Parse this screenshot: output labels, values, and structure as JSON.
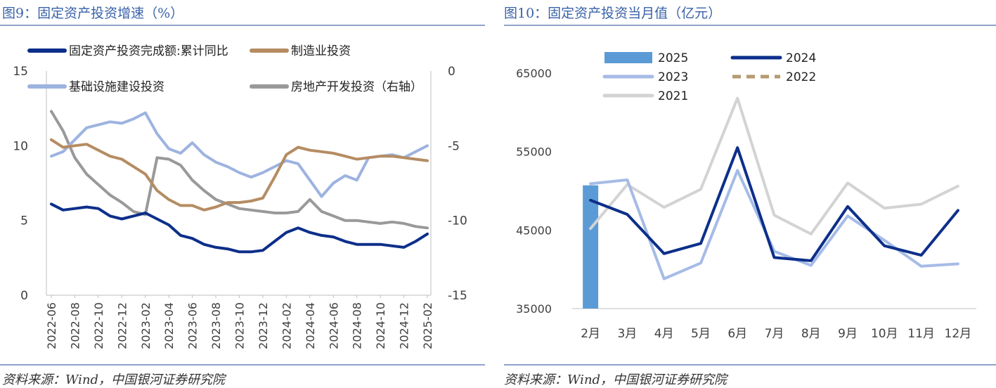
{
  "charts": [
    {
      "title": "图9：固定资产投资增速（%）",
      "source": "资料来源：Wind，中国银河证券研究院"
    },
    {
      "title": "图10：固定资产投资当月值（亿元）",
      "source": "资料来源：Wind，中国银河证券研究院"
    }
  ],
  "chart_data": [
    {
      "type": "line",
      "title": "图9：固定资产投资增速（%）",
      "x": [
        "2022-06",
        "2022-07",
        "2022-08",
        "2022-09",
        "2022-10",
        "2022-11",
        "2022-12",
        "2023-01",
        "2023-02",
        "2023-03",
        "2023-04",
        "2023-05",
        "2023-06",
        "2023-07",
        "2023-08",
        "2023-09",
        "2023-10",
        "2023-11",
        "2023-12",
        "2024-01",
        "2024-02",
        "2024-03",
        "2024-04",
        "2024-05",
        "2024-06",
        "2024-07",
        "2024-08",
        "2024-09",
        "2024-10",
        "2024-11",
        "2024-12",
        "2025-01",
        "2025-02"
      ],
      "x_tick_labels": [
        "2022-06",
        "2022-08",
        "2022-10",
        "2022-12",
        "2023-02",
        "2023-04",
        "2023-06",
        "2023-08",
        "2023-10",
        "2023-12",
        "2024-02",
        "2024-04",
        "2024-06",
        "2024-08",
        "2024-10",
        "2024-12",
        "2025-02"
      ],
      "ylim": [
        0,
        15
      ],
      "y_ticks": [
        0,
        5,
        10,
        15
      ],
      "y2lim": [
        -15,
        0
      ],
      "y2_ticks": [
        -15,
        -10,
        -5,
        0
      ],
      "legend_position": "top",
      "series": [
        {
          "name": "固定资产投资完成额:累计同比",
          "axis": "left",
          "color": "#0d2f8a",
          "values": [
            6.1,
            5.7,
            5.8,
            5.9,
            5.8,
            5.3,
            5.1,
            5.3,
            5.5,
            5.1,
            4.7,
            4.0,
            3.8,
            3.4,
            3.2,
            3.1,
            2.9,
            2.9,
            3.0,
            3.6,
            4.2,
            4.5,
            4.2,
            4.0,
            3.9,
            3.6,
            3.4,
            3.4,
            3.4,
            3.3,
            3.2,
            3.6,
            4.1
          ]
        },
        {
          "name": "制造业投资",
          "axis": "left",
          "color": "#b58c62",
          "values": [
            10.4,
            9.9,
            10.0,
            10.1,
            9.7,
            9.3,
            9.1,
            8.6,
            8.1,
            7.0,
            6.4,
            6.0,
            6.0,
            5.7,
            5.9,
            6.2,
            6.2,
            6.3,
            6.5,
            7.9,
            9.4,
            9.9,
            9.7,
            9.6,
            9.5,
            9.3,
            9.1,
            9.2,
            9.3,
            9.3,
            9.2,
            9.1,
            9.0
          ]
        },
        {
          "name": "基础设施建设投资",
          "axis": "left",
          "color": "#9db3e0",
          "values": [
            9.3,
            9.6,
            10.4,
            11.2,
            11.4,
            11.6,
            11.5,
            11.8,
            12.2,
            10.8,
            9.8,
            9.5,
            10.2,
            9.4,
            8.9,
            8.6,
            8.2,
            7.9,
            8.2,
            8.6,
            9.0,
            8.8,
            7.7,
            6.6,
            7.5,
            8.0,
            7.7,
            9.2,
            9.3,
            9.4,
            9.2,
            9.6,
            10.0
          ]
        },
        {
          "name": "房地产开发投资（右轴）",
          "axis": "right",
          "color": "#999999",
          "values": [
            -2.7,
            -4.0,
            -5.8,
            -6.9,
            -7.6,
            -8.3,
            -8.8,
            -9.4,
            -9.6,
            -5.8,
            -5.9,
            -6.3,
            -7.3,
            -8.0,
            -8.6,
            -8.9,
            -9.2,
            -9.3,
            -9.4,
            -9.5,
            -9.5,
            -9.4,
            -8.6,
            -9.4,
            -9.7,
            -10.0,
            -10.0,
            -10.1,
            -10.2,
            -10.1,
            -10.2,
            -10.4,
            -10.5
          ]
        }
      ]
    },
    {
      "type": "bar",
      "title": "图10：固定资产投资当月值（亿元）",
      "categories": [
        "2月",
        "3月",
        "4月",
        "5月",
        "6月",
        "7月",
        "8月",
        "9月",
        "10月",
        "11月",
        "12月"
      ],
      "ylim": [
        35000,
        65000
      ],
      "y_ticks": [
        35000,
        45000,
        55000,
        65000
      ],
      "legend_position": "top-left",
      "series": [
        {
          "name": "2025",
          "type": "bar",
          "color": "#5b9bd5",
          "values": [
            50700,
            null,
            null,
            null,
            null,
            null,
            null,
            null,
            null,
            null,
            null
          ]
        },
        {
          "name": "2024",
          "type": "line",
          "color": "#0d2f8a",
          "values": [
            48800,
            47000,
            42000,
            43300,
            55500,
            41500,
            41100,
            48000,
            43000,
            41800,
            47500
          ]
        },
        {
          "name": "2023",
          "type": "line",
          "color": "#a6bbe6",
          "values": [
            50900,
            51400,
            38800,
            40800,
            52600,
            42300,
            40500,
            46800,
            43700,
            40400,
            40700
          ]
        },
        {
          "name": "2022",
          "type": "line",
          "style": "dashed",
          "color": "#b59a72",
          "values": [
            null,
            null,
            null,
            null,
            null,
            null,
            null,
            null,
            null,
            null,
            null
          ]
        },
        {
          "name": "2021",
          "type": "line",
          "color": "#d3d3d3",
          "values": [
            45200,
            50800,
            47900,
            50200,
            61800,
            46900,
            44500,
            51000,
            47800,
            48300,
            50600
          ]
        }
      ]
    }
  ]
}
